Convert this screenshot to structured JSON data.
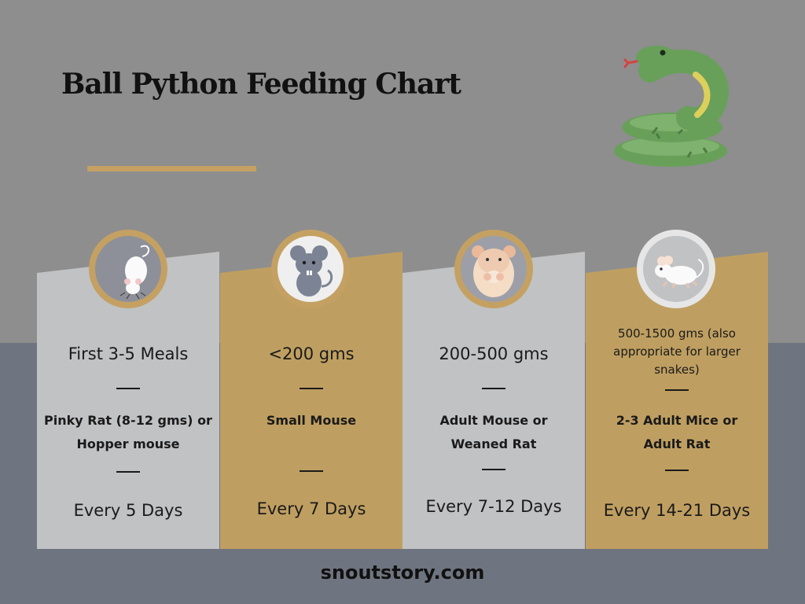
{
  "title": "Ball Python Feeding Chart",
  "colors": {
    "top_background": "#8e8e8e",
    "bottom_background": "#6f7580",
    "grey_panel": "#c1c2c4",
    "gold_panel": "#bf9f61",
    "accent": "#c4a163",
    "snake": "#68a05a"
  },
  "columns": [
    {
      "size": "First 3-5 Meals",
      "food": "Pinky Rat (8-12 gms) or Hopper mouse",
      "frequency": "Every 5 Days",
      "icon": "white-mouse-icon"
    },
    {
      "size": "<200 gms",
      "food": "Small Mouse",
      "frequency": "Every 7 Days",
      "icon": "grey-mouse-icon"
    },
    {
      "size": "200-500 gms",
      "food": "Adult Mouse or Weaned Rat",
      "frequency": "Every 7-12 Days",
      "icon": "hamster-icon"
    },
    {
      "size": "500-1500 gms (also appropriate for larger snakes)",
      "food": "2-3 Adult Mice or Adult Rat",
      "frequency": "Every 14-21 Days",
      "icon": "running-mouse-icon"
    }
  ],
  "footer": "snoutstory.com"
}
